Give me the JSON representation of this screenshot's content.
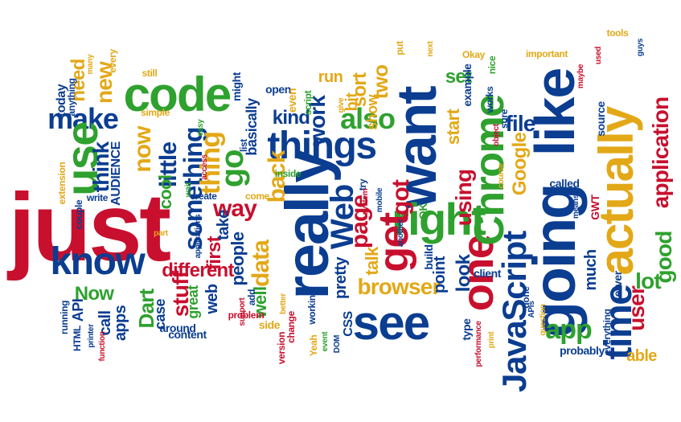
{
  "palette": {
    "blue": "#0b3d91",
    "green": "#2ea12e",
    "red": "#c8102e",
    "yellow": "#e3a817"
  },
  "words": [
    {
      "text": "just",
      "color": "red"
    },
    {
      "text": "know",
      "color": "blue"
    },
    {
      "text": "code",
      "color": "green"
    },
    {
      "text": "make",
      "color": "blue"
    },
    {
      "text": "use",
      "color": "green"
    },
    {
      "text": "need",
      "color": "yellow"
    },
    {
      "text": "new",
      "color": "yellow"
    },
    {
      "text": "think",
      "color": "blue"
    },
    {
      "text": "now",
      "color": "yellow"
    },
    {
      "text": "little",
      "color": "blue"
    },
    {
      "text": "something",
      "color": "blue"
    },
    {
      "text": "thing",
      "color": "yellow"
    },
    {
      "text": "go",
      "color": "green"
    },
    {
      "text": "really",
      "color": "blue"
    },
    {
      "text": "things",
      "color": "blue"
    },
    {
      "text": "want",
      "color": "blue"
    },
    {
      "text": "right",
      "color": "green"
    },
    {
      "text": "get",
      "color": "red"
    },
    {
      "text": "got",
      "color": "red"
    },
    {
      "text": "see",
      "color": "blue"
    },
    {
      "text": "Web",
      "color": "blue"
    },
    {
      "text": "one",
      "color": "red"
    },
    {
      "text": "Chrome",
      "color": "green"
    },
    {
      "text": "JavaScript",
      "color": "blue"
    },
    {
      "text": "going",
      "color": "blue"
    },
    {
      "text": "like",
      "color": "blue"
    },
    {
      "text": "actually",
      "color": "yellow"
    },
    {
      "text": "time",
      "color": "blue"
    },
    {
      "text": "application",
      "color": "red"
    },
    {
      "text": "browser",
      "color": "yellow"
    },
    {
      "text": "app",
      "color": "green"
    },
    {
      "text": "way",
      "color": "red"
    },
    {
      "text": "different",
      "color": "red"
    },
    {
      "text": "stuff",
      "color": "red"
    },
    {
      "text": "Dart",
      "color": "green"
    },
    {
      "text": "Now",
      "color": "green"
    },
    {
      "text": "API",
      "color": "blue"
    },
    {
      "text": "data",
      "color": "yellow"
    },
    {
      "text": "well",
      "color": "green"
    },
    {
      "text": "also",
      "color": "green"
    },
    {
      "text": "kind",
      "color": "blue"
    },
    {
      "text": "back",
      "color": "yellow"
    },
    {
      "text": "page",
      "color": "red"
    },
    {
      "text": "talk",
      "color": "yellow"
    },
    {
      "text": "look",
      "color": "blue"
    },
    {
      "text": "using",
      "color": "red"
    },
    {
      "text": "lot",
      "color": "green"
    },
    {
      "text": "good",
      "color": "green"
    },
    {
      "text": "user",
      "color": "red"
    },
    {
      "text": "much",
      "color": "blue"
    },
    {
      "text": "file",
      "color": "blue"
    },
    {
      "text": "Google",
      "color": "yellow"
    },
    {
      "text": "work",
      "color": "blue"
    },
    {
      "text": "two",
      "color": "yellow"
    },
    {
      "text": "sort",
      "color": "yellow"
    },
    {
      "text": "set",
      "color": "green"
    },
    {
      "text": "start",
      "color": "yellow"
    },
    {
      "text": "point",
      "color": "blue"
    },
    {
      "text": "pretty",
      "color": "blue"
    },
    {
      "text": "people",
      "color": "blue"
    },
    {
      "text": "first",
      "color": "red"
    },
    {
      "text": "web",
      "color": "blue"
    },
    {
      "text": "take",
      "color": "blue"
    },
    {
      "text": "cool",
      "color": "green"
    },
    {
      "text": "call",
      "color": "blue"
    },
    {
      "text": "apps",
      "color": "blue"
    },
    {
      "text": "case",
      "color": "blue"
    },
    {
      "text": "great",
      "color": "green"
    },
    {
      "text": "AUDIENCE",
      "color": "blue"
    },
    {
      "text": "today",
      "color": "blue"
    },
    {
      "text": "run",
      "color": "yellow"
    },
    {
      "text": "bit",
      "color": "yellow"
    },
    {
      "text": "show",
      "color": "yellow"
    },
    {
      "text": "basically",
      "color": "blue"
    },
    {
      "text": "open",
      "color": "blue"
    },
    {
      "text": "even",
      "color": "yellow"
    },
    {
      "text": "might",
      "color": "blue"
    },
    {
      "text": "example",
      "color": "blue"
    },
    {
      "text": "able",
      "color": "yellow"
    },
    {
      "text": "probably",
      "color": "blue"
    },
    {
      "text": "server",
      "color": "blue"
    },
    {
      "text": "called",
      "color": "blue"
    },
    {
      "text": "GWT",
      "color": "red"
    },
    {
      "text": "source",
      "color": "blue"
    },
    {
      "text": "content",
      "color": "blue"
    },
    {
      "text": "around",
      "color": "blue"
    },
    {
      "text": "side",
      "color": "yellow"
    },
    {
      "text": "CSS",
      "color": "blue"
    },
    {
      "text": "type",
      "color": "blue"
    },
    {
      "text": "client",
      "color": "blue"
    },
    {
      "text": "build",
      "color": "blue"
    },
    {
      "text": "every",
      "color": "yellow"
    },
    {
      "text": "still",
      "color": "yellow"
    },
    {
      "text": "many",
      "color": "yellow"
    },
    {
      "text": "anything",
      "color": "blue"
    },
    {
      "text": "simple",
      "color": "yellow"
    },
    {
      "text": "extension",
      "color": "yellow"
    },
    {
      "text": "write",
      "color": "blue"
    },
    {
      "text": "couple",
      "color": "blue"
    },
    {
      "text": "running",
      "color": "blue"
    },
    {
      "text": "HTML",
      "color": "blue"
    },
    {
      "text": "printer",
      "color": "blue"
    },
    {
      "text": "function",
      "color": "red"
    },
    {
      "text": "part",
      "color": "yellow"
    },
    {
      "text": "create",
      "color": "blue"
    },
    {
      "text": "applications",
      "color": "blue"
    },
    {
      "text": "easy",
      "color": "green"
    },
    {
      "text": "access",
      "color": "red"
    },
    {
      "text": "wait",
      "color": "green"
    },
    {
      "text": "come",
      "color": "yellow"
    },
    {
      "text": "inside",
      "color": "green"
    },
    {
      "text": "list",
      "color": "blue"
    },
    {
      "text": "script",
      "color": "green"
    },
    {
      "text": "give",
      "color": "yellow"
    },
    {
      "text": "put",
      "color": "yellow"
    },
    {
      "text": "next",
      "color": "yellow"
    },
    {
      "text": "Okay",
      "color": "yellow"
    },
    {
      "text": "nice",
      "color": "green"
    },
    {
      "text": "works",
      "color": "blue"
    },
    {
      "text": "object",
      "color": "red"
    },
    {
      "text": "sure",
      "color": "blue"
    },
    {
      "text": "important",
      "color": "yellow"
    },
    {
      "text": "maybe",
      "color": "red"
    },
    {
      "text": "tools",
      "color": "yellow"
    },
    {
      "text": "used",
      "color": "red"
    },
    {
      "text": "guys",
      "color": "blue"
    },
    {
      "text": "try",
      "color": "blue"
    },
    {
      "text": "system",
      "color": "red"
    },
    {
      "text": "mobile",
      "color": "blue"
    },
    {
      "text": "another",
      "color": "blue"
    },
    {
      "text": "OK",
      "color": "green"
    },
    {
      "text": "means",
      "color": "blue"
    },
    {
      "text": "course",
      "color": "yellow"
    },
    {
      "text": "done",
      "color": "blue"
    },
    {
      "text": "APIs",
      "color": "blue"
    },
    {
      "text": "question",
      "color": "yellow"
    },
    {
      "text": "print",
      "color": "yellow"
    },
    {
      "text": "performance",
      "color": "red"
    },
    {
      "text": "everything",
      "color": "blue"
    },
    {
      "text": "better",
      "color": "yellow"
    },
    {
      "text": "working",
      "color": "blue"
    },
    {
      "text": "change",
      "color": "red"
    },
    {
      "text": "Yeah",
      "color": "yellow"
    },
    {
      "text": "event",
      "color": "green"
    },
    {
      "text": "DOM",
      "color": "blue"
    },
    {
      "text": "version",
      "color": "red"
    },
    {
      "text": "add",
      "color": "blue"
    },
    {
      "text": "support",
      "color": "red"
    },
    {
      "text": "problem",
      "color": "red"
    }
  ]
}
